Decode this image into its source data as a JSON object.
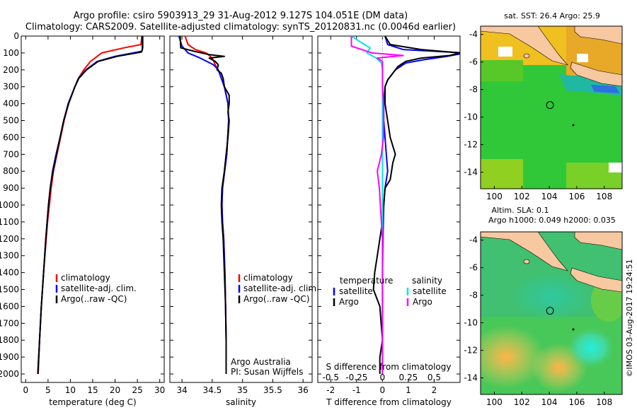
{
  "header": {
    "line1": "Argo profile: csiro 5903913_29 31-Aug-2012 9.127S 104.051E (DM data)",
    "line2": "Climatology: CARS2009. Satellite-adjusted climatology: synTS_20120831.nc (0.0046d earlier)"
  },
  "footer": {
    "credit": "©IMOS 03-Aug-2017 19:24:51"
  },
  "colors": {
    "climatology": "#ff0000",
    "satellite": "#0000ff",
    "argo": "#000000",
    "salinity_satellite": "#00e5e5",
    "salinity_argo": "#ff00ff",
    "land": "#f8c8a0"
  },
  "chart_data": [
    {
      "type": "line",
      "id": "temperature",
      "xlabel": "temperature (deg C)",
      "xlim": [
        -1,
        31
      ],
      "ylim": [
        2050,
        0
      ],
      "xticks": [
        0,
        5,
        10,
        15,
        20,
        25,
        30
      ],
      "yticks": [
        0,
        100,
        200,
        300,
        400,
        500,
        600,
        700,
        800,
        900,
        1000,
        1100,
        1200,
        1300,
        1400,
        1500,
        1600,
        1700,
        1800,
        1900,
        2000
      ],
      "legend": [
        "climatology",
        "satellite-adj. clim.",
        "Argo(..raw -QC)"
      ],
      "legend_position": "lower-middle",
      "series": [
        {
          "name": "climatology",
          "color": "#ff0000",
          "depth": [
            0,
            50,
            70,
            100,
            150,
            200,
            250,
            300,
            400,
            500,
            600,
            700,
            800,
            900,
            1000,
            1100,
            1200,
            1400,
            1600,
            1800,
            2000
          ],
          "values": [
            26.0,
            25.8,
            22.0,
            17.0,
            14.5,
            13.0,
            11.8,
            11.0,
            9.6,
            8.6,
            7.8,
            7.0,
            6.2,
            5.7,
            5.3,
            4.9,
            4.6,
            4.0,
            3.5,
            3.1,
            2.8
          ]
        },
        {
          "name": "satellite-adj. clim.",
          "color": "#0000ff",
          "depth": [
            0,
            70,
            90,
            120,
            150,
            200,
            250,
            300,
            400,
            500,
            600,
            700,
            800,
            900,
            1000,
            1100,
            1200,
            1400,
            1600,
            1800,
            2000
          ],
          "values": [
            26.2,
            26.2,
            26.0,
            20.0,
            16.0,
            13.5,
            11.8,
            11.0,
            9.5,
            8.5,
            7.7,
            6.8,
            6.0,
            5.5,
            5.1,
            4.8,
            4.5,
            4.0,
            3.5,
            3.1,
            2.7
          ]
        },
        {
          "name": "Argo(..raw -QC)",
          "color": "#000000",
          "depth": [
            0,
            80,
            95,
            120,
            150,
            200,
            250,
            300,
            400,
            500,
            600,
            700,
            800,
            900,
            1000,
            1100,
            1200,
            1400,
            1600,
            1800,
            2000
          ],
          "values": [
            26.1,
            26.1,
            25.9,
            20.5,
            16.2,
            13.6,
            11.9,
            11.0,
            9.6,
            8.5,
            7.7,
            6.9,
            6.1,
            5.5,
            5.1,
            4.8,
            4.5,
            4.0,
            3.5,
            3.1,
            2.7
          ]
        }
      ]
    },
    {
      "type": "line",
      "id": "salinity",
      "xlabel": "salinity",
      "xlim": [
        33.8,
        36.15
      ],
      "ylim": [
        2050,
        0
      ],
      "xticks": [
        34,
        34.5,
        35,
        35.5,
        36
      ],
      "legend": [
        "climatology",
        "satellite-adj. clim.",
        "Argo(..raw -QC)"
      ],
      "legend_position": "lower-right",
      "annotations": [
        "Argo Australia",
        "PI: Susan Wijffels"
      ],
      "series": [
        {
          "name": "climatology",
          "color": "#ff0000",
          "depth": [
            0,
            50,
            80,
            100,
            130,
            170,
            200,
            250,
            300,
            400,
            500,
            700,
            900,
            1000,
            1100,
            1200,
            1400,
            1600,
            1800,
            2000
          ],
          "values": [
            34.05,
            34.1,
            34.22,
            34.4,
            34.5,
            34.55,
            34.6,
            34.65,
            34.7,
            34.76,
            34.77,
            34.74,
            34.67,
            34.66,
            34.67,
            34.69,
            34.71,
            34.72,
            34.73,
            34.73
          ]
        },
        {
          "name": "satellite-adj. clim.",
          "color": "#0000ff",
          "depth": [
            0,
            60,
            80,
            100,
            130,
            170,
            200,
            250,
            300,
            400,
            500,
            700,
            900,
            1000,
            1100,
            1200,
            1400,
            1600,
            1800,
            2000
          ],
          "values": [
            33.95,
            34.0,
            34.05,
            34.1,
            34.3,
            34.52,
            34.6,
            34.65,
            34.7,
            34.76,
            34.77,
            34.74,
            34.67,
            34.66,
            34.67,
            34.69,
            34.71,
            34.72,
            34.73,
            34.73
          ]
        },
        {
          "name": "Argo(..raw -QC)",
          "color": "#000000",
          "depth": [
            0,
            70,
            90,
            110,
            120,
            130,
            150,
            170,
            200,
            220,
            250,
            300,
            350,
            400,
            450,
            500,
            600,
            700,
            800,
            900,
            1000,
            1100,
            1200,
            1400,
            1600,
            1800,
            2000
          ],
          "values": [
            33.97,
            33.98,
            34.2,
            34.45,
            34.7,
            34.45,
            34.55,
            34.6,
            34.58,
            34.65,
            34.68,
            34.7,
            34.78,
            34.78,
            34.76,
            34.78,
            34.76,
            34.73,
            34.7,
            34.66,
            34.65,
            34.66,
            34.68,
            34.7,
            34.72,
            34.73,
            34.73
          ]
        }
      ]
    },
    {
      "type": "line",
      "id": "difference",
      "xlabel": "T difference from climatology",
      "xlabel_top": "S difference from climatology",
      "xlim": [
        -2.5,
        3.0
      ],
      "ylim": [
        2050,
        0
      ],
      "xticks": [
        -2,
        -1,
        0,
        1,
        2
      ],
      "xticks_salinity": [
        -0.5,
        -0.25,
        0,
        0.25,
        0.5
      ],
      "legend_titles": [
        "temperature",
        "salinity"
      ],
      "legend": [
        "satellite",
        "Argo",
        "satellite",
        "Argo"
      ],
      "legend_position": "lower-middle",
      "series": [
        {
          "name": "satellite",
          "variable": "temperature",
          "color": "#0000ff",
          "depth": [
            0,
            50,
            80,
            100,
            120,
            140,
            160,
            200,
            260,
            300,
            400,
            500,
            600,
            700,
            800,
            900,
            1000,
            1200,
            1400,
            1600,
            1800,
            2000
          ],
          "values": [
            0.1,
            0.2,
            0.8,
            3.2,
            2.5,
            1.6,
            0.9,
            0.5,
            0.2,
            0.1,
            0.05,
            0.05,
            0.1,
            0.15,
            0.2,
            0.1,
            0.05,
            0.02,
            0.0,
            0.0,
            0.0,
            0.0
          ]
        },
        {
          "name": "Argo",
          "variable": "temperature",
          "color": "#000000",
          "depth": [
            0,
            50,
            80,
            100,
            115,
            130,
            150,
            180,
            220,
            260,
            300,
            400,
            500,
            600,
            650,
            700,
            750,
            800,
            850,
            900,
            1000,
            1100,
            1200,
            1300,
            1400,
            1500,
            1600,
            1700,
            1800,
            1900,
            2000
          ],
          "values": [
            0.1,
            0.3,
            1.5,
            3.0,
            2.6,
            1.5,
            0.9,
            0.6,
            0.4,
            0.2,
            0.1,
            0.1,
            0.2,
            0.3,
            0.4,
            0.5,
            0.4,
            0.35,
            0.3,
            0.1,
            0.05,
            0.0,
            -0.1,
            -0.2,
            -0.3,
            -0.35,
            -0.1,
            -0.05,
            0.0,
            -0.1,
            -0.1
          ]
        },
        {
          "name": "satellite",
          "variable": "salinity",
          "color": "#00e5e5",
          "depth": [
            0,
            40,
            70,
            100,
            130,
            160,
            200,
            250,
            300,
            400,
            600,
            800,
            1000,
            1200,
            1400,
            1600,
            1800,
            2000
          ],
          "values": [
            -0.3,
            -0.2,
            -0.12,
            -0.15,
            -0.06,
            -0.01,
            0.0,
            0.0,
            0.0,
            0.0,
            0.0,
            0.0,
            0.0,
            0.0,
            0.0,
            0.0,
            0.0,
            0.0
          ]
        },
        {
          "name": "Argo",
          "variable": "salinity",
          "color": "#ff00ff",
          "depth": [
            0,
            60,
            80,
            100,
            115,
            130,
            150,
            180,
            220,
            300,
            400,
            500,
            600,
            700,
            800,
            900,
            1000,
            1100,
            1200,
            1400,
            1600,
            1800,
            2000
          ],
          "values": [
            -0.3,
            -0.3,
            -0.2,
            -0.1,
            0.2,
            -0.05,
            0.0,
            0.0,
            0.0,
            0.0,
            0.01,
            0.01,
            0.01,
            -0.01,
            -0.05,
            -0.03,
            -0.02,
            -0.01,
            0.0,
            0.0,
            0.0,
            0.0,
            0.0
          ]
        }
      ]
    },
    {
      "type": "heatmap",
      "id": "sst-map",
      "title": "sat. SST: 26.4  Argo: 25.9",
      "xlim": [
        99,
        109.3
      ],
      "ylim": [
        -15.2,
        -3.4
      ],
      "xticks": [
        100,
        102,
        104,
        106,
        108
      ],
      "yticks": [
        -4,
        -6,
        -8,
        -10,
        -12,
        -14
      ],
      "marker": {
        "lon": 104.051,
        "lat": -9.127
      }
    },
    {
      "type": "heatmap",
      "id": "sla-map",
      "title": "Altim. SLA: 0.1",
      "subtitle": "Argo h1000: 0.049 h2000: 0.035",
      "xlim": [
        99,
        109.3
      ],
      "ylim": [
        -15.2,
        -3.4
      ],
      "xticks": [
        100,
        102,
        104,
        106,
        108
      ],
      "yticks": [
        -4,
        -6,
        -8,
        -10,
        -12,
        -14
      ],
      "marker": {
        "lon": 104.051,
        "lat": -9.127
      }
    }
  ]
}
